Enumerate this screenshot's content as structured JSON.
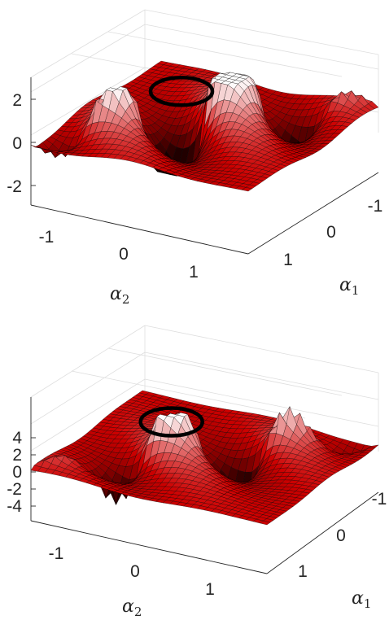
{
  "chart_data": [
    {
      "type": "surface",
      "xlabel": "α2",
      "ylabel": "α1",
      "x_ticks": [
        "-1",
        "0",
        "1"
      ],
      "y_ticks": [
        "-1",
        "0",
        "1"
      ],
      "z_ticks": [
        "-2",
        "0",
        "2"
      ],
      "zlim": [
        -3,
        3
      ],
      "colormap": [
        "#000000",
        "#cc0000",
        "#ffffff"
      ],
      "surface_sign": 1,
      "contour": "closed circle near (α1, α2) ≈ (0.8, -0.8)"
    },
    {
      "type": "surface",
      "xlabel": "α2",
      "ylabel": "α1",
      "x_ticks": [
        "-1",
        "0",
        "1"
      ],
      "y_ticks": [
        "-1",
        "0",
        "1"
      ],
      "z_ticks": [
        "-4",
        "-2",
        "0",
        "2",
        "4"
      ],
      "zlim": [
        -5,
        5
      ],
      "colormap": [
        "#000000",
        "#cc0000",
        "#ffffff"
      ],
      "surface_sign": -1,
      "contour": "closed circle near (α1, α2) ≈ (0.8, -0.8)"
    }
  ]
}
